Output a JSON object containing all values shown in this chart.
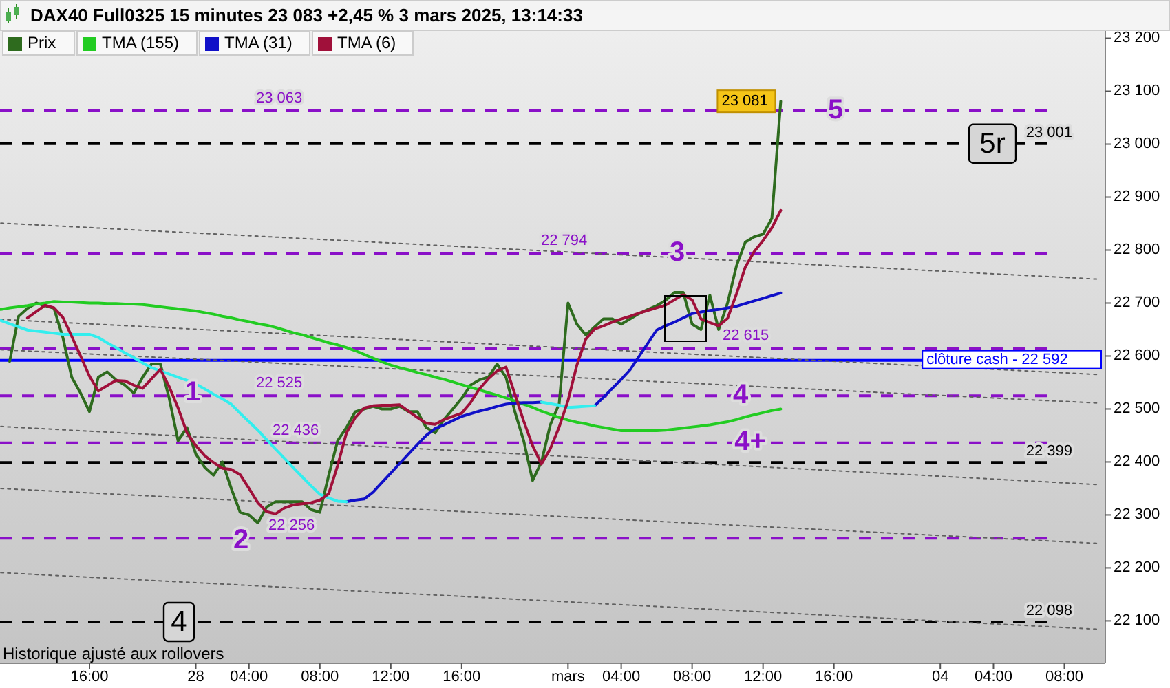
{
  "chart_data": {
    "type": "line",
    "title": "DAX40 Full0325 15 minutes 23 083 +2,45 % 3 mars 2025, 13:14:33",
    "categories": [
      null,
      null,
      null,
      null,
      null,
      null,
      null,
      null,
      null,
      null,
      "16:00",
      null,
      null,
      null,
      null,
      null,
      null,
      null,
      null,
      null,
      null,
      null,
      "28",
      null,
      null,
      null,
      null,
      null,
      "04:00",
      null,
      null,
      null,
      null,
      null,
      null,
      null,
      "08:00",
      null,
      null,
      null,
      null,
      null,
      null,
      null,
      "12:00",
      null,
      null,
      null,
      null,
      null,
      null,
      null,
      "16:00",
      null,
      null,
      null,
      null,
      null,
      null,
      null,
      null,
      null,
      null,
      null,
      "mars",
      null,
      null,
      null,
      null,
      null,
      "04:00",
      null,
      null,
      null,
      null,
      null,
      null,
      null,
      "08:00",
      null,
      null,
      null,
      null,
      null,
      null,
      null,
      "12:00",
      null,
      null,
      null,
      null,
      null,
      null,
      null,
      "16:00",
      null,
      null,
      null,
      null,
      null,
      null,
      null,
      null,
      null,
      null,
      null,
      "04",
      null,
      null,
      null,
      null,
      null,
      "04:00",
      null,
      null,
      null,
      null,
      null,
      null,
      null,
      "08:00",
      null,
      null,
      null,
      null
    ],
    "ylim": [
      22020,
      23215
    ],
    "yticks": [
      {
        "value": 22100,
        "label": "22 100"
      },
      {
        "value": 22200,
        "label": "22 200"
      },
      {
        "value": 22300,
        "label": "22 300"
      },
      {
        "value": 22400,
        "label": "22 400"
      },
      {
        "value": 22500,
        "label": "22 500"
      },
      {
        "value": 22600,
        "label": "22 600"
      },
      {
        "value": 22700,
        "label": "22 700"
      },
      {
        "value": 22800,
        "label": "22 800"
      },
      {
        "value": 22900,
        "label": "22 900"
      },
      {
        "value": 23000,
        "label": "23 000"
      },
      {
        "value": 23100,
        "label": "23 100"
      },
      {
        "value": 23200,
        "label": "23 200"
      }
    ],
    "legend": "top left",
    "marker": "none",
    "series": [
      {
        "name": "Prix",
        "color": "#2e6b1e",
        "values": [
          null,
          22590,
          22675,
          22690,
          22700,
          22695,
          22690,
          22635,
          22560,
          22530,
          22495,
          22560,
          22570,
          22555,
          22545,
          22530,
          22560,
          22585,
          22585,
          22520,
          22440,
          22465,
          22415,
          22390,
          22375,
          22400,
          22350,
          22305,
          22300,
          22285,
          22315,
          22325,
          22325,
          22325,
          22325,
          22310,
          22305,
          22375,
          22440,
          22465,
          22495,
          22500,
          22505,
          22500,
          22500,
          22505,
          22495,
          22495,
          22465,
          22455,
          22480,
          22500,
          22520,
          22545,
          22555,
          22560,
          22585,
          22560,
          22495,
          22440,
          22365,
          22400,
          22470,
          22510,
          22700,
          22660,
          22640,
          22655,
          22670,
          22670,
          22660,
          22670,
          22680,
          22688,
          22695,
          22705,
          22720,
          22720,
          22660,
          22650,
          22715,
          22650,
          22700,
          22770,
          22815,
          22825,
          22830,
          22860,
          23081,
          null,
          null,
          null,
          null,
          null,
          null,
          null,
          null,
          null,
          null,
          null,
          null,
          null,
          null,
          null,
          null,
          null,
          null,
          null,
          null,
          null,
          null,
          null,
          null,
          null,
          null,
          null,
          null,
          null,
          null,
          null,
          null,
          null,
          null,
          null,
          null
        ],
        "value_labels": [
          null,
          null,
          null,
          null,
          null,
          null,
          null,
          null,
          null,
          null,
          null,
          null,
          null,
          null,
          null,
          null,
          null,
          null,
          null,
          null,
          null,
          null,
          null,
          null,
          null,
          null,
          null,
          null,
          null,
          null,
          null,
          null,
          null,
          null,
          null,
          null,
          null,
          null,
          null,
          null,
          null,
          null,
          null,
          null,
          null,
          null,
          null,
          null,
          null,
          null,
          null,
          null,
          null,
          null,
          null,
          null,
          null,
          null,
          null,
          null,
          null,
          null,
          null,
          null,
          null,
          null,
          null,
          null,
          null,
          null,
          null,
          null,
          null,
          null,
          null,
          null,
          null,
          null,
          null,
          null,
          null,
          null,
          null,
          null,
          null,
          null,
          null,
          null,
          "23 081",
          null,
          null,
          null,
          null,
          null,
          null,
          null,
          null,
          null,
          null,
          null,
          null,
          null,
          null,
          null,
          null,
          null,
          null,
          null,
          null,
          null,
          null,
          null,
          null,
          null,
          null,
          null,
          null,
          null,
          null,
          null,
          null,
          null,
          null,
          null,
          null
        ]
      },
      {
        "name": "TMA (155)",
        "color": "#22cc22",
        "values": [
          22688,
          22691,
          22693,
          22695,
          22698,
          22700,
          22703,
          22702,
          22702,
          22701,
          22700,
          22700,
          22699,
          22699,
          22698,
          22698,
          22697,
          22695,
          22693,
          22691,
          22689,
          22687,
          22685,
          22682,
          22679,
          22675,
          22672,
          22668,
          22665,
          22661,
          22658,
          22654,
          22649,
          22644,
          22640,
          22635,
          22630,
          22625,
          22621,
          22616,
          22610,
          22603,
          22596,
          22589,
          22583,
          22578,
          22574,
          22569,
          22565,
          22560,
          22556,
          22551,
          22546,
          22541,
          22536,
          22531,
          22526,
          22521,
          22515,
          22509,
          22503,
          22496,
          22490,
          22484,
          22479,
          22475,
          22472,
          22468,
          22465,
          22462,
          22459,
          22459,
          22459,
          22459,
          22459,
          22460,
          22462,
          22464,
          22466,
          22468,
          22470,
          22473,
          22476,
          22480,
          22485,
          22489,
          22493,
          22497,
          22500,
          null,
          null,
          null,
          null,
          null,
          null,
          null,
          null,
          null,
          null,
          null,
          null,
          null,
          null,
          null,
          null,
          null,
          null,
          null,
          null,
          null,
          null,
          null,
          null,
          null,
          null,
          null,
          null,
          null,
          null,
          null,
          null,
          null,
          null,
          null,
          null
        ]
      },
      {
        "name": "TMA (31)",
        "color": "#1010c8",
        "values": [
          null,
          null,
          null,
          null,
          null,
          null,
          null,
          null,
          null,
          null,
          null,
          null,
          null,
          null,
          null,
          null,
          null,
          null,
          null,
          null,
          null,
          null,
          null,
          null,
          null,
          null,
          null,
          null,
          null,
          null,
          null,
          null,
          null,
          null,
          null,
          null,
          null,
          null,
          null,
          22325,
          22328,
          22330,
          22343,
          22361,
          22379,
          22397,
          22415,
          22433,
          22450,
          22463,
          22470,
          22478,
          22486,
          22491,
          22496,
          22500,
          22505,
          22509,
          22511,
          22512,
          22512,
          22513,
          null,
          null,
          null,
          null,
          null,
          null,
          null,
          null,
          null,
          null,
          null,
          null,
          null,
          null,
          null,
          null,
          null,
          null,
          null,
          null,
          null,
          null,
          null,
          null,
          null,
          null,
          null,
          null,
          null,
          null,
          null,
          null,
          null,
          null,
          null,
          null,
          null,
          null,
          null,
          null,
          null,
          null,
          null,
          null,
          null,
          null,
          null,
          null,
          null,
          null,
          null,
          null,
          null,
          null,
          null,
          null,
          null,
          null,
          null,
          null,
          null,
          null,
          null
        ]
      },
      {
        "color": "#1010c8",
        "values": [
          null,
          null,
          null,
          null,
          null,
          null,
          null,
          null,
          null,
          null,
          null,
          null,
          null,
          null,
          null,
          null,
          null,
          null,
          null,
          null,
          null,
          null,
          null,
          null,
          null,
          null,
          null,
          null,
          null,
          null,
          null,
          null,
          null,
          null,
          null,
          null,
          null,
          null,
          null,
          null,
          null,
          null,
          null,
          null,
          null,
          null,
          null,
          null,
          null,
          null,
          null,
          null,
          null,
          null,
          null,
          null,
          null,
          null,
          null,
          null,
          null,
          null,
          null,
          null,
          null,
          null,
          null,
          22506,
          22522,
          22539,
          22556,
          22574,
          22599,
          22624,
          22649,
          22657,
          22664,
          22672,
          22680,
          22683,
          22686,
          22688,
          22691,
          22694,
          22699,
          22704,
          22709,
          22714,
          22719,
          null,
          null,
          null,
          null,
          null,
          null,
          null,
          null,
          null,
          null,
          null,
          null,
          null,
          null,
          null,
          null,
          null,
          null,
          null,
          null,
          null,
          null,
          null,
          null,
          null,
          null,
          null,
          null,
          null,
          null,
          null,
          null,
          null,
          null,
          null,
          null
        ]
      },
      {
        "color": "#33eeee",
        "values": [
          22667,
          22661,
          22655,
          22649,
          22647,
          22645,
          22643,
          22641,
          22641,
          22641,
          22641,
          22635,
          22625,
          22616,
          22606,
          22597,
          22587,
          22578,
          22572,
          22566,
          22560,
          22554,
          22547,
          22538,
          22528,
          22519,
          22509,
          22492,
          22476,
          22460,
          22442,
          22424,
          22407,
          22389,
          22372,
          22355,
          22339,
          22332,
          22326,
          22325,
          null,
          null,
          null,
          null,
          null,
          null,
          null,
          null,
          null,
          null,
          null,
          null,
          null,
          null,
          null,
          null,
          null,
          null,
          null,
          null,
          null,
          null,
          null,
          null,
          null,
          null,
          null,
          null,
          null,
          null,
          null,
          null,
          null,
          null,
          null,
          null,
          null,
          null,
          null,
          null,
          null,
          null,
          null,
          null,
          null,
          null,
          null,
          null,
          null,
          null,
          null,
          null,
          null,
          null,
          null,
          null,
          null,
          null,
          null,
          null,
          null,
          null,
          null,
          null,
          null,
          null,
          null,
          null,
          null,
          null,
          null,
          null,
          null,
          null,
          null,
          null,
          null,
          null,
          null,
          null,
          null,
          null,
          null,
          null,
          null
        ]
      },
      {
        "color": "#33eeee",
        "values": [
          null,
          null,
          null,
          null,
          null,
          null,
          null,
          null,
          null,
          null,
          null,
          null,
          null,
          null,
          null,
          null,
          null,
          null,
          null,
          null,
          null,
          null,
          null,
          null,
          null,
          null,
          null,
          null,
          null,
          null,
          null,
          null,
          null,
          null,
          null,
          null,
          null,
          null,
          null,
          null,
          null,
          null,
          null,
          null,
          null,
          null,
          null,
          null,
          null,
          null,
          null,
          null,
          null,
          null,
          null,
          null,
          null,
          null,
          null,
          null,
          null,
          22513,
          22510,
          22507,
          22503,
          22504,
          22505,
          22506,
          null,
          null,
          null,
          null,
          null,
          null,
          null,
          null,
          null,
          null,
          null,
          null,
          null,
          null,
          null,
          null,
          null,
          null,
          null,
          null,
          null,
          null,
          null,
          null,
          null,
          null,
          null,
          null,
          null,
          null,
          null,
          null,
          null,
          null,
          null,
          null,
          null,
          null,
          null,
          null,
          null,
          null,
          null,
          null,
          null,
          null,
          null,
          null,
          null,
          null,
          null,
          null,
          null,
          null,
          null,
          null,
          null
        ]
      },
      {
        "name": "TMA (6)",
        "color": "#a0103a",
        "values": [
          null,
          null,
          null,
          22672,
          22684,
          22696,
          22691,
          22673,
          22637,
          22600,
          22562,
          22534,
          22544,
          22554,
          22553,
          22545,
          22539,
          22557,
          22575,
          22542,
          22502,
          22455,
          22431,
          22412,
          22399,
          22388,
          22386,
          22376,
          22350,
          22323,
          22306,
          22302,
          22313,
          22319,
          22321,
          22323,
          22328,
          22340,
          22393,
          22455,
          22484,
          22502,
          22506,
          22507,
          22507,
          22508,
          22496,
          22484,
          22473,
          22471,
          22480,
          22486,
          22492,
          22512,
          22538,
          22557,
          22572,
          22579,
          22528,
          22477,
          22431,
          22396,
          22425,
          22466,
          22516,
          22583,
          22632,
          22651,
          22657,
          22664,
          22670,
          22675,
          22681,
          22686,
          22691,
          22696,
          22706,
          22716,
          22706,
          22670,
          22663,
          22657,
          22671,
          22717,
          22768,
          22797,
          22818,
          22842,
          22875,
          null,
          null,
          null,
          null,
          null,
          null,
          null,
          null,
          null,
          null,
          null,
          null,
          null,
          null,
          null,
          null,
          null,
          null,
          null,
          null,
          null,
          null,
          null,
          null,
          null,
          null,
          null,
          null,
          null,
          null,
          null,
          null,
          null,
          null,
          null,
          null
        ]
      },
      {
        "color": "#606060",
        "line_style": "dotted",
        "values": [
          22851,
          null,
          null,
          null,
          null,
          null,
          null,
          null,
          null,
          null,
          null,
          null,
          null,
          null,
          null,
          null,
          null,
          null,
          null,
          null,
          null,
          null,
          null,
          null,
          null,
          null,
          null,
          null,
          null,
          null,
          null,
          null,
          null,
          null,
          null,
          null,
          null,
          null,
          null,
          null,
          null,
          null,
          null,
          null,
          null,
          null,
          null,
          null,
          null,
          null,
          null,
          null,
          null,
          null,
          null,
          null,
          null,
          null,
          null,
          null,
          null,
          null,
          null,
          null,
          null,
          null,
          null,
          null,
          null,
          null,
          null,
          null,
          null,
          null,
          null,
          null,
          null,
          null,
          null,
          null,
          null,
          null,
          null,
          null,
          null,
          null,
          null,
          null,
          null,
          null,
          null,
          null,
          null,
          null,
          null,
          null,
          null,
          null,
          null,
          null,
          null,
          null,
          null,
          null,
          null,
          null,
          null,
          null,
          null,
          null,
          null,
          null,
          null,
          null,
          null,
          null,
          null,
          null,
          null,
          null,
          null,
          null,
          null,
          null,
          22745
        ]
      },
      {
        "color": "#606060",
        "line_style": "dotted",
        "values": [
          22669,
          null,
          null,
          null,
          null,
          null,
          null,
          null,
          null,
          null,
          null,
          null,
          null,
          null,
          null,
          null,
          null,
          null,
          null,
          null,
          null,
          null,
          null,
          null,
          null,
          null,
          null,
          null,
          null,
          null,
          null,
          null,
          null,
          null,
          null,
          null,
          null,
          null,
          null,
          null,
          null,
          null,
          null,
          null,
          null,
          null,
          null,
          null,
          null,
          null,
          null,
          null,
          null,
          null,
          null,
          null,
          null,
          null,
          null,
          null,
          null,
          null,
          null,
          null,
          null,
          null,
          null,
          null,
          null,
          null,
          null,
          null,
          null,
          null,
          null,
          null,
          null,
          null,
          null,
          null,
          null,
          null,
          null,
          null,
          null,
          null,
          null,
          null,
          null,
          null,
          null,
          null,
          null,
          null,
          null,
          null,
          null,
          null,
          null,
          null,
          null,
          null,
          null,
          null,
          null,
          null,
          null,
          null,
          null,
          null,
          null,
          null,
          null,
          null,
          null,
          null,
          null,
          null,
          null,
          null,
          null,
          null,
          null,
          null,
          22565
        ]
      },
      {
        "color": "#606060",
        "line_style": "dotted",
        "values": [
          22612,
          null,
          null,
          null,
          null,
          null,
          null,
          null,
          null,
          null,
          null,
          null,
          null,
          null,
          null,
          null,
          null,
          null,
          null,
          null,
          null,
          null,
          null,
          null,
          null,
          null,
          null,
          null,
          null,
          null,
          null,
          null,
          null,
          null,
          null,
          null,
          null,
          null,
          null,
          null,
          null,
          null,
          null,
          null,
          null,
          null,
          null,
          null,
          null,
          null,
          null,
          null,
          null,
          null,
          null,
          null,
          null,
          null,
          null,
          null,
          null,
          null,
          null,
          null,
          null,
          null,
          null,
          null,
          null,
          null,
          null,
          null,
          null,
          null,
          null,
          null,
          null,
          null,
          null,
          null,
          null,
          null,
          null,
          null,
          null,
          null,
          null,
          null,
          null,
          null,
          null,
          null,
          null,
          null,
          null,
          null,
          null,
          null,
          null,
          null,
          null,
          null,
          null,
          null,
          null,
          null,
          null,
          null,
          null,
          null,
          null,
          null,
          null,
          null,
          null,
          null,
          null,
          null,
          null,
          null,
          null,
          null,
          null,
          null,
          22511
        ]
      },
      {
        "color": "#606060",
        "line_style": "dotted",
        "values": [
          22467,
          null,
          null,
          null,
          null,
          null,
          null,
          null,
          null,
          null,
          null,
          null,
          null,
          null,
          null,
          null,
          null,
          null,
          null,
          null,
          null,
          null,
          null,
          null,
          null,
          null,
          null,
          null,
          null,
          null,
          null,
          null,
          null,
          null,
          null,
          null,
          null,
          null,
          null,
          null,
          null,
          null,
          null,
          null,
          null,
          null,
          null,
          null,
          null,
          null,
          null,
          null,
          null,
          null,
          null,
          null,
          null,
          null,
          null,
          null,
          null,
          null,
          null,
          null,
          null,
          null,
          null,
          null,
          null,
          null,
          null,
          null,
          null,
          null,
          null,
          null,
          null,
          null,
          null,
          null,
          null,
          null,
          null,
          null,
          null,
          null,
          null,
          null,
          null,
          null,
          null,
          null,
          null,
          null,
          null,
          null,
          null,
          null,
          null,
          null,
          null,
          null,
          null,
          null,
          null,
          null,
          null,
          null,
          null,
          null,
          null,
          null,
          null,
          null,
          null,
          null,
          null,
          null,
          null,
          null,
          null,
          null,
          null,
          null,
          22357
        ]
      },
      {
        "color": "#606060",
        "line_style": "dotted",
        "values": [
          22350,
          null,
          null,
          null,
          null,
          null,
          null,
          null,
          null,
          null,
          null,
          null,
          null,
          null,
          null,
          null,
          null,
          null,
          null,
          null,
          null,
          null,
          null,
          null,
          null,
          null,
          null,
          null,
          null,
          null,
          null,
          null,
          null,
          null,
          null,
          null,
          null,
          null,
          null,
          null,
          null,
          null,
          null,
          null,
          null,
          null,
          null,
          null,
          null,
          null,
          null,
          null,
          null,
          null,
          null,
          null,
          null,
          null,
          null,
          null,
          null,
          null,
          null,
          null,
          null,
          null,
          null,
          null,
          null,
          null,
          null,
          null,
          null,
          null,
          null,
          null,
          null,
          null,
          null,
          null,
          null,
          null,
          null,
          null,
          null,
          null,
          null,
          null,
          null,
          null,
          null,
          null,
          null,
          null,
          null,
          null,
          null,
          null,
          null,
          null,
          null,
          null,
          null,
          null,
          null,
          null,
          null,
          null,
          null,
          null,
          null,
          null,
          null,
          null,
          null,
          null,
          null,
          null,
          null,
          null,
          null,
          null,
          null,
          null,
          22246
        ]
      },
      {
        "color": "#606060",
        "line_style": "dotted",
        "values": [
          22191,
          null,
          null,
          null,
          null,
          null,
          null,
          null,
          null,
          null,
          null,
          null,
          null,
          null,
          null,
          null,
          null,
          null,
          null,
          null,
          null,
          null,
          null,
          null,
          null,
          null,
          null,
          null,
          null,
          null,
          null,
          null,
          null,
          null,
          null,
          null,
          null,
          null,
          null,
          null,
          null,
          null,
          null,
          null,
          null,
          null,
          null,
          null,
          null,
          null,
          null,
          null,
          null,
          null,
          null,
          null,
          null,
          null,
          null,
          null,
          null,
          null,
          null,
          null,
          null,
          null,
          null,
          null,
          null,
          null,
          null,
          null,
          null,
          null,
          null,
          null,
          null,
          null,
          null,
          null,
          null,
          null,
          null,
          null,
          null,
          null,
          null,
          null,
          null,
          null,
          null,
          null,
          null,
          null,
          null,
          null,
          null,
          null,
          null,
          null,
          null,
          null,
          null,
          null,
          null,
          null,
          null,
          null,
          null,
          null,
          null,
          null,
          null,
          null,
          null,
          null,
          null,
          null,
          null,
          null,
          null,
          null,
          null,
          null,
          22084
        ]
      }
    ],
    "ref_lines": [
      {
        "axis": "y",
        "value": 23063,
        "label": "23 063",
        "color": "#8a10c8",
        "line_style": "dashed"
      },
      {
        "axis": "y",
        "value": 22794,
        "label": "22 794",
        "color": "#8a10c8",
        "line_style": "dashed"
      },
      {
        "axis": "y",
        "value": 22615,
        "label": "22 615",
        "color": "#8a10c8",
        "line_style": "dashed"
      },
      {
        "axis": "y",
        "value": 22525,
        "label": "22 525",
        "color": "#8a10c8",
        "line_style": "dashed"
      },
      {
        "axis": "y",
        "value": 22436,
        "label": "22 436",
        "color": "#8a10c8",
        "line_style": "dashed"
      },
      {
        "axis": "y",
        "value": 22256,
        "label": "22 256",
        "color": "#8a10c8",
        "line_style": "dashed"
      },
      {
        "axis": "y",
        "value": 23001,
        "label": "23 001",
        "color": "#000000",
        "line_style": "dashed"
      },
      {
        "axis": "y",
        "value": 22399,
        "label": "22 399",
        "color": "#000000",
        "line_style": "dashed"
      },
      {
        "axis": "y",
        "value": 22098,
        "label": "22 098",
        "color": "#000000",
        "line_style": "dashed"
      },
      {
        "axis": "y",
        "value": 22592,
        "label": "clôture cash - 22 592",
        "color": "#0000ff",
        "line_style": "solid"
      }
    ],
    "annotations": [
      {
        "text": "1",
        "y": 22530
      },
      {
        "text": "2",
        "y": 22250
      },
      {
        "text": "3",
        "y": 22794
      },
      {
        "text": "4",
        "y": 22525
      },
      {
        "text": "4+",
        "y": 22436
      },
      {
        "text": "5",
        "y": 23063
      },
      {
        "text": "5r",
        "y": 23001
      },
      {
        "text": "4",
        "y": 22098
      },
      "Historique ajusté aux rollovers"
    ]
  }
}
